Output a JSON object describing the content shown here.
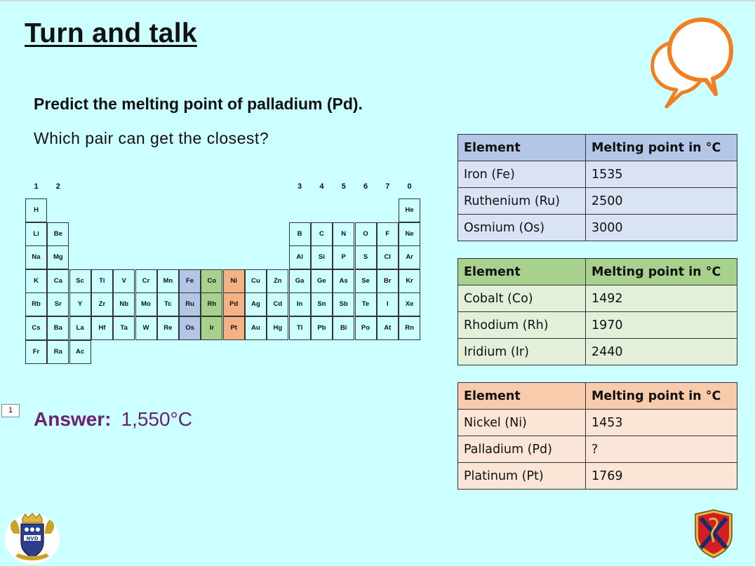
{
  "slide": {
    "title": "Turn and talk",
    "question": "Predict the melting point of palladium (Pd).",
    "prompt": "Which pair can get the closest?",
    "slide_number": "1",
    "answer_label": "Answer:",
    "answer_value": "1,550°C"
  },
  "colors": {
    "blue": "#b4c6e7",
    "green": "#a9d18e",
    "orange": "#f4b183",
    "answer": "#6b2070",
    "background": "#ccffff"
  },
  "periodic_table": {
    "group_labels": [
      {
        "label": "1",
        "col": 0
      },
      {
        "label": "2",
        "col": 1
      },
      {
        "label": "3",
        "col": 12
      },
      {
        "label": "4",
        "col": 13
      },
      {
        "label": "5",
        "col": 14
      },
      {
        "label": "6",
        "col": 15
      },
      {
        "label": "7",
        "col": 16
      },
      {
        "label": "0",
        "col": 17
      }
    ],
    "cells": [
      {
        "s": "H",
        "r": 0,
        "c": 0
      },
      {
        "s": "He",
        "r": 0,
        "c": 17
      },
      {
        "s": "Li",
        "r": 1,
        "c": 0
      },
      {
        "s": "Be",
        "r": 1,
        "c": 1
      },
      {
        "s": "B",
        "r": 1,
        "c": 12
      },
      {
        "s": "C",
        "r": 1,
        "c": 13
      },
      {
        "s": "N",
        "r": 1,
        "c": 14
      },
      {
        "s": "O",
        "r": 1,
        "c": 15
      },
      {
        "s": "F",
        "r": 1,
        "c": 16
      },
      {
        "s": "Ne",
        "r": 1,
        "c": 17
      },
      {
        "s": "Na",
        "r": 2,
        "c": 0
      },
      {
        "s": "Mg",
        "r": 2,
        "c": 1
      },
      {
        "s": "Al",
        "r": 2,
        "c": 12
      },
      {
        "s": "Si",
        "r": 2,
        "c": 13
      },
      {
        "s": "P",
        "r": 2,
        "c": 14
      },
      {
        "s": "S",
        "r": 2,
        "c": 15
      },
      {
        "s": "Cl",
        "r": 2,
        "c": 16
      },
      {
        "s": "Ar",
        "r": 2,
        "c": 17
      },
      {
        "s": "K",
        "r": 3,
        "c": 0
      },
      {
        "s": "Ca",
        "r": 3,
        "c": 1
      },
      {
        "s": "Sc",
        "r": 3,
        "c": 2
      },
      {
        "s": "Ti",
        "r": 3,
        "c": 3
      },
      {
        "s": "V",
        "r": 3,
        "c": 4
      },
      {
        "s": "Cr",
        "r": 3,
        "c": 5
      },
      {
        "s": "Mn",
        "r": 3,
        "c": 6
      },
      {
        "s": "Fe",
        "r": 3,
        "c": 7,
        "hl": "blue"
      },
      {
        "s": "Co",
        "r": 3,
        "c": 8,
        "hl": "green"
      },
      {
        "s": "Ni",
        "r": 3,
        "c": 9,
        "hl": "orange"
      },
      {
        "s": "Cu",
        "r": 3,
        "c": 10
      },
      {
        "s": "Zn",
        "r": 3,
        "c": 11
      },
      {
        "s": "Ga",
        "r": 3,
        "c": 12
      },
      {
        "s": "Ge",
        "r": 3,
        "c": 13
      },
      {
        "s": "As",
        "r": 3,
        "c": 14
      },
      {
        "s": "Se",
        "r": 3,
        "c": 15
      },
      {
        "s": "Br",
        "r": 3,
        "c": 16
      },
      {
        "s": "Kr",
        "r": 3,
        "c": 17
      },
      {
        "s": "Rb",
        "r": 4,
        "c": 0
      },
      {
        "s": "Sr",
        "r": 4,
        "c": 1
      },
      {
        "s": "Y",
        "r": 4,
        "c": 2
      },
      {
        "s": "Zr",
        "r": 4,
        "c": 3
      },
      {
        "s": "Nb",
        "r": 4,
        "c": 4
      },
      {
        "s": "Mo",
        "r": 4,
        "c": 5
      },
      {
        "s": "Tc",
        "r": 4,
        "c": 6
      },
      {
        "s": "Ru",
        "r": 4,
        "c": 7,
        "hl": "blue"
      },
      {
        "s": "Rh",
        "r": 4,
        "c": 8,
        "hl": "green"
      },
      {
        "s": "Pd",
        "r": 4,
        "c": 9,
        "hl": "orange"
      },
      {
        "s": "Ag",
        "r": 4,
        "c": 10
      },
      {
        "s": "Cd",
        "r": 4,
        "c": 11
      },
      {
        "s": "In",
        "r": 4,
        "c": 12
      },
      {
        "s": "Sn",
        "r": 4,
        "c": 13
      },
      {
        "s": "Sb",
        "r": 4,
        "c": 14
      },
      {
        "s": "Te",
        "r": 4,
        "c": 15
      },
      {
        "s": "I",
        "r": 4,
        "c": 16
      },
      {
        "s": "Xe",
        "r": 4,
        "c": 17
      },
      {
        "s": "Cs",
        "r": 5,
        "c": 0
      },
      {
        "s": "Ba",
        "r": 5,
        "c": 1
      },
      {
        "s": "La",
        "r": 5,
        "c": 2
      },
      {
        "s": "Hf",
        "r": 5,
        "c": 3
      },
      {
        "s": "Ta",
        "r": 5,
        "c": 4
      },
      {
        "s": "W",
        "r": 5,
        "c": 5
      },
      {
        "s": "Re",
        "r": 5,
        "c": 6
      },
      {
        "s": "Os",
        "r": 5,
        "c": 7,
        "hl": "blue"
      },
      {
        "s": "Ir",
        "r": 5,
        "c": 8,
        "hl": "green"
      },
      {
        "s": "Pt",
        "r": 5,
        "c": 9,
        "hl": "orange"
      },
      {
        "s": "Au",
        "r": 5,
        "c": 10
      },
      {
        "s": "Hg",
        "r": 5,
        "c": 11
      },
      {
        "s": "Tl",
        "r": 5,
        "c": 12
      },
      {
        "s": "Pb",
        "r": 5,
        "c": 13
      },
      {
        "s": "Bi",
        "r": 5,
        "c": 14
      },
      {
        "s": "Po",
        "r": 5,
        "c": 15
      },
      {
        "s": "At",
        "r": 5,
        "c": 16
      },
      {
        "s": "Rn",
        "r": 5,
        "c": 17
      },
      {
        "s": "Fr",
        "r": 6,
        "c": 0
      },
      {
        "s": "Ra",
        "r": 6,
        "c": 1
      },
      {
        "s": "Ac",
        "r": 6,
        "c": 2
      }
    ]
  },
  "tables": {
    "blue": {
      "headers": [
        "Element",
        "Melting point in °C"
      ],
      "rows": [
        [
          "Iron (Fe)",
          "1535"
        ],
        [
          "Ruthenium (Ru)",
          "2500"
        ],
        [
          "Osmium (Os)",
          "3000"
        ]
      ]
    },
    "green": {
      "headers": [
        "Element",
        "Melting point in °C"
      ],
      "rows": [
        [
          "Cobalt (Co)",
          "1492"
        ],
        [
          "Rhodium (Rh)",
          "1970"
        ],
        [
          "Iridium (Ir)",
          "2440"
        ]
      ]
    },
    "orange": {
      "headers": [
        "Element",
        "Melting point in °C"
      ],
      "rows": [
        [
          "Nickel (Ni)",
          "1453"
        ],
        [
          "Palladium (Pd)",
          "?"
        ],
        [
          "Platinum (Pt)",
          "1769"
        ]
      ]
    }
  },
  "icons": {
    "bubbles": "speech-bubbles-icon",
    "crest_left": "school-crest-icon",
    "crest_right": "shield-crest-icon",
    "crest_left_text": "NVD"
  }
}
